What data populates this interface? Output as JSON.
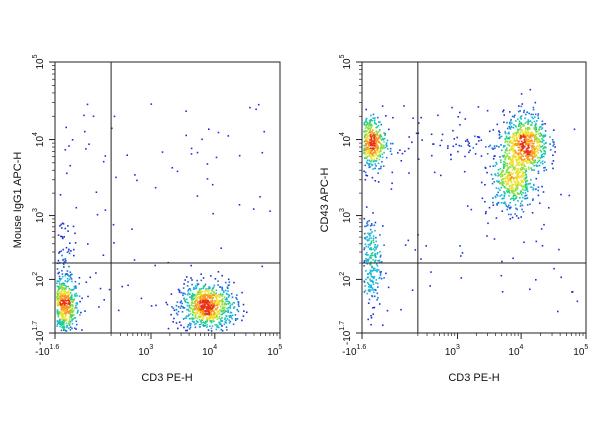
{
  "chart_data": [
    {
      "type": "scatter",
      "subtype": "flow-cytometry-density-dot-plot",
      "xlabel": "CD3 PE-H",
      "ylabel": "Mouse IgG1 APC-H",
      "x_scale": "biexponential",
      "y_scale": "biexponential",
      "xlim": [
        -40,
        100000
      ],
      "ylim": [
        -50,
        100000
      ],
      "x_ticks": [
        {
          "base": "-10",
          "exp": "1.6",
          "value": -40
        },
        {
          "base": "10",
          "exp": "3",
          "value": 1000
        },
        {
          "base": "10",
          "exp": "4",
          "value": 10000
        },
        {
          "base": "10",
          "exp": "5",
          "value": 100000
        }
      ],
      "y_ticks": [
        {
          "base": "-10",
          "exp": "1.7",
          "value": -50
        },
        {
          "base": "10",
          "exp": "2",
          "value": 100
        },
        {
          "base": "10",
          "exp": "3",
          "value": 1000
        },
        {
          "base": "10",
          "exp": "4",
          "value": 10000
        },
        {
          "base": "10",
          "exp": "5",
          "value": 100000
        }
      ],
      "quadrant_gate": {
        "x": 200,
        "y": 200
      },
      "populations": [
        {
          "name": "CD3- isotype-",
          "x_center": -15,
          "y_center": 10,
          "count": 560,
          "x_spread": 0.035,
          "y_spread": 0.05
        },
        {
          "name": "CD3+ isotype-",
          "x_center": 7500,
          "y_center": 10,
          "count": 820,
          "x_spread": 0.06,
          "y_spread": 0.045
        },
        {
          "name": "CD3- isotype- tail",
          "x_center": -15,
          "y_center": 180,
          "count": 110,
          "x_spread": 0.025,
          "y_spread": 0.1
        }
      ],
      "grid": false,
      "legend": "none"
    },
    {
      "type": "scatter",
      "subtype": "flow-cytometry-density-dot-plot",
      "xlabel": "CD3 PE-H",
      "ylabel": "CD43 APC-H",
      "x_scale": "biexponential",
      "y_scale": "biexponential",
      "xlim": [
        -40,
        100000
      ],
      "ylim": [
        -50,
        100000
      ],
      "x_ticks": [
        {
          "base": "-10",
          "exp": "1.6",
          "value": -40
        },
        {
          "base": "10",
          "exp": "3",
          "value": 1000
        },
        {
          "base": "10",
          "exp": "4",
          "value": 10000
        },
        {
          "base": "10",
          "exp": "5",
          "value": 100000
        }
      ],
      "y_ticks": [
        {
          "base": "-10",
          "exp": "1.7",
          "value": -50
        },
        {
          "base": "10",
          "exp": "2",
          "value": 100
        },
        {
          "base": "10",
          "exp": "3",
          "value": 1000
        },
        {
          "base": "10",
          "exp": "4",
          "value": 10000
        },
        {
          "base": "10",
          "exp": "5",
          "value": 100000
        }
      ],
      "quadrant_gate": {
        "x": 200,
        "y": 200
      },
      "populations": [
        {
          "name": "CD3- CD43 high",
          "x_center": -15,
          "y_center": 9000,
          "count": 480,
          "x_spread": 0.035,
          "y_spread": 0.05
        },
        {
          "name": "CD3- CD43 low",
          "x_center": -15,
          "y_center": 200,
          "count": 230,
          "x_spread": 0.025,
          "y_spread": 0.09
        },
        {
          "name": "CD3+ CD43 high",
          "x_center": 12000,
          "y_center": 9000,
          "count": 620,
          "x_spread": 0.05,
          "y_spread": 0.055
        },
        {
          "name": "CD3+ CD43 mid",
          "x_center": 7500,
          "y_center": 3000,
          "count": 470,
          "x_spread": 0.05,
          "y_spread": 0.06
        },
        {
          "name": "bridge",
          "x_center": 900,
          "y_center": 8500,
          "count": 60,
          "x_spread": 0.15,
          "y_spread": 0.04
        }
      ],
      "grid": false,
      "legend": "none"
    }
  ]
}
